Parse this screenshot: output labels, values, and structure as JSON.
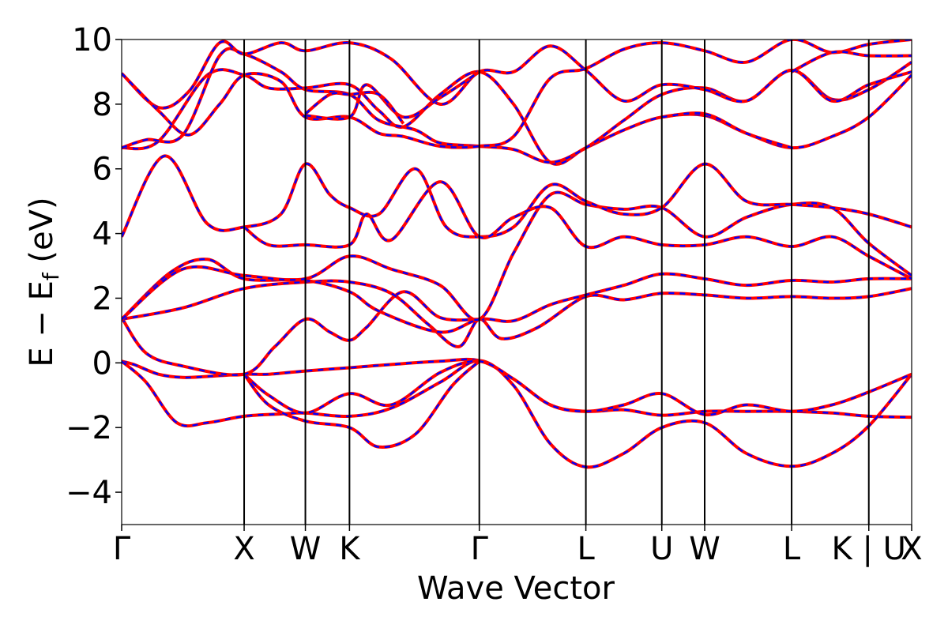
{
  "chart_data": {
    "type": "line",
    "title": "",
    "xlabel": "Wave Vector",
    "ylabel": "E − E",
    "ylabel_sub": "f",
    "ylabel_unit": " (eV)",
    "ylim": [
      -5,
      10
    ],
    "yticks": [
      -4,
      -2,
      0,
      2,
      4,
      6,
      8,
      10
    ],
    "ytick_labels": [
      "−4",
      "−2",
      "0",
      "2",
      "4",
      "6",
      "8",
      "10"
    ],
    "xlim": [
      0,
      6.45
    ],
    "kpoints": [
      {
        "label": "Γ",
        "x": 0
      },
      {
        "label": "X",
        "x": 1.0
      },
      {
        "label": "W",
        "x": 1.5
      },
      {
        "label": "K",
        "x": 1.86
      },
      {
        "label": "Γ",
        "x": 2.92
      },
      {
        "label": "L",
        "x": 3.79
      },
      {
        "label": "U",
        "x": 4.41
      },
      {
        "label": "W",
        "x": 4.76
      },
      {
        "label": "L",
        "x": 5.47
      },
      {
        "label": "K | U",
        "x": 6.1
      },
      {
        "label": "X",
        "x": 6.45
      }
    ],
    "legend": "none",
    "grid": false,
    "series_colors": {
      "line_a": "#ff0000",
      "line_b": "#0000ff"
    },
    "bands": [
      [
        [
          0,
          0.05
        ],
        [
          0.1,
          -0.05
        ],
        [
          0.3,
          -0.35
        ],
        [
          0.5,
          -0.45
        ],
        [
          0.7,
          -0.42
        ],
        [
          1.0,
          -0.35
        ],
        [
          1.2,
          -0.35
        ],
        [
          1.5,
          -0.25
        ],
        [
          1.86,
          -0.15
        ],
        [
          2.2,
          -0.05
        ],
        [
          2.6,
          0.05
        ],
        [
          2.92,
          0.07
        ],
        [
          3.2,
          -0.5
        ],
        [
          3.5,
          -1.3
        ],
        [
          3.79,
          -1.5
        ],
        [
          4.1,
          -1.45
        ],
        [
          4.41,
          -1.62
        ],
        [
          4.76,
          -1.5
        ],
        [
          5.1,
          -1.5
        ],
        [
          5.47,
          -1.5
        ],
        [
          5.8,
          -1.55
        ],
        [
          6.1,
          -1.65
        ],
        [
          6.45,
          -1.68
        ]
      ],
      [
        [
          0,
          0.05
        ],
        [
          0.2,
          -0.6
        ],
        [
          0.45,
          -1.85
        ],
        [
          0.7,
          -1.85
        ],
        [
          1.0,
          -1.65
        ],
        [
          1.3,
          -1.58
        ],
        [
          1.5,
          -1.55
        ],
        [
          1.86,
          -1.65
        ],
        [
          2.2,
          -1.4
        ],
        [
          2.6,
          -0.6
        ],
        [
          2.92,
          0.07
        ],
        [
          3.2,
          -0.7
        ],
        [
          3.5,
          -2.5
        ],
        [
          3.79,
          -3.22
        ],
        [
          4.1,
          -2.8
        ],
        [
          4.41,
          -2.0
        ],
        [
          4.76,
          -1.85
        ],
        [
          5.1,
          -2.8
        ],
        [
          5.47,
          -3.2
        ],
        [
          5.8,
          -2.8
        ],
        [
          6.1,
          -1.95
        ],
        [
          6.45,
          -0.35
        ]
      ],
      [
        [
          1.0,
          -0.35
        ],
        [
          1.2,
          -1.0
        ],
        [
          1.5,
          -1.55
        ],
        [
          1.86,
          -0.95
        ],
        [
          2.2,
          -1.3
        ],
        [
          2.6,
          -0.3
        ],
        [
          2.92,
          0.05
        ],
        [
          3.2,
          -0.5
        ],
        [
          3.5,
          -1.3
        ],
        [
          3.79,
          -1.5
        ],
        [
          4.1,
          -1.3
        ],
        [
          4.41,
          -0.95
        ],
        [
          4.76,
          -1.6
        ],
        [
          5.1,
          -1.3
        ],
        [
          5.47,
          -1.5
        ],
        [
          5.8,
          -1.3
        ],
        [
          6.1,
          -0.9
        ],
        [
          6.45,
          -0.35
        ]
      ],
      [
        [
          1.0,
          -0.35
        ],
        [
          1.2,
          -1.3
        ],
        [
          1.5,
          -1.8
        ],
        [
          1.86,
          -2.0
        ],
        [
          2.1,
          -2.6
        ],
        [
          2.4,
          -2.2
        ],
        [
          2.7,
          -0.7
        ],
        [
          2.92,
          0.05
        ]
      ],
      [
        [
          0,
          1.4
        ],
        [
          0.2,
          0.3
        ],
        [
          0.5,
          -0.1
        ],
        [
          1.0,
          -0.35
        ],
        [
          1.25,
          0.5
        ],
        [
          1.5,
          1.35
        ],
        [
          1.7,
          0.95
        ],
        [
          1.86,
          0.7
        ],
        [
          2.0,
          1.1
        ],
        [
          2.3,
          2.2
        ],
        [
          2.6,
          1.4
        ],
        [
          2.92,
          1.35
        ]
      ],
      [
        [
          0,
          1.35
        ],
        [
          0.5,
          1.7
        ],
        [
          1.0,
          2.3
        ],
        [
          1.5,
          2.5
        ],
        [
          1.86,
          2.5
        ],
        [
          2.2,
          2.15
        ],
        [
          2.5,
          1.2
        ],
        [
          2.75,
          0.5
        ],
        [
          2.92,
          1.35
        ],
        [
          3.1,
          0.75
        ],
        [
          3.4,
          1.1
        ],
        [
          3.79,
          2.05
        ],
        [
          4.1,
          1.95
        ],
        [
          4.41,
          2.15
        ],
        [
          4.76,
          2.1
        ],
        [
          5.1,
          2.0
        ],
        [
          5.47,
          2.05
        ],
        [
          5.8,
          2.0
        ],
        [
          6.1,
          2.05
        ],
        [
          6.45,
          2.3
        ]
      ],
      [
        [
          0,
          1.35
        ],
        [
          0.4,
          2.8
        ],
        [
          0.7,
          3.2
        ],
        [
          1.0,
          2.6
        ],
        [
          1.5,
          2.55
        ],
        [
          1.86,
          2.2
        ],
        [
          2.1,
          1.6
        ],
        [
          2.6,
          0.95
        ],
        [
          2.92,
          1.35
        ],
        [
          3.2,
          1.3
        ],
        [
          3.5,
          1.8
        ],
        [
          3.79,
          2.1
        ],
        [
          4.1,
          2.4
        ],
        [
          4.41,
          2.75
        ],
        [
          4.76,
          2.6
        ],
        [
          5.1,
          2.4
        ],
        [
          5.47,
          2.55
        ],
        [
          5.8,
          2.5
        ],
        [
          6.1,
          2.6
        ],
        [
          6.45,
          2.6
        ]
      ],
      [
        [
          0,
          1.35
        ],
        [
          0.5,
          2.9
        ],
        [
          1.0,
          2.7
        ],
        [
          1.5,
          2.6
        ],
        [
          1.86,
          3.3
        ],
        [
          2.2,
          2.9
        ],
        [
          2.6,
          2.4
        ],
        [
          2.92,
          1.35
        ],
        [
          3.2,
          3.4
        ],
        [
          3.5,
          5.2
        ],
        [
          3.79,
          4.9
        ],
        [
          4.1,
          4.75
        ],
        [
          4.41,
          4.8
        ],
        [
          4.76,
          3.9
        ],
        [
          5.1,
          4.5
        ],
        [
          5.47,
          4.9
        ],
        [
          5.8,
          4.8
        ],
        [
          6.1,
          3.7
        ],
        [
          6.45,
          2.7
        ]
      ],
      [
        [
          0,
          3.9
        ],
        [
          0.35,
          6.4
        ],
        [
          0.7,
          4.3
        ],
        [
          1.0,
          4.2
        ],
        [
          1.3,
          4.6
        ],
        [
          1.5,
          6.15
        ],
        [
          1.7,
          5.2
        ],
        [
          1.86,
          4.8
        ],
        [
          2.1,
          4.6
        ],
        [
          2.4,
          6.0
        ],
        [
          2.65,
          4.2
        ],
        [
          2.92,
          3.9
        ],
        [
          3.2,
          4.2
        ],
        [
          3.5,
          5.5
        ],
        [
          3.79,
          5.0
        ],
        [
          4.1,
          4.6
        ],
        [
          4.41,
          4.8
        ],
        [
          4.76,
          6.15
        ],
        [
          5.1,
          5.0
        ],
        [
          5.47,
          4.9
        ],
        [
          5.8,
          4.8
        ],
        [
          6.1,
          4.6
        ],
        [
          6.45,
          4.2
        ]
      ],
      [
        [
          1.0,
          4.2
        ],
        [
          1.2,
          3.65
        ],
        [
          1.5,
          3.65
        ],
        [
          1.86,
          3.65
        ],
        [
          2.0,
          4.6
        ],
        [
          2.2,
          3.8
        ],
        [
          2.6,
          5.6
        ],
        [
          2.92,
          3.9
        ],
        [
          3.2,
          4.5
        ],
        [
          3.5,
          4.8
        ],
        [
          3.79,
          3.6
        ],
        [
          4.1,
          3.9
        ],
        [
          4.41,
          3.65
        ],
        [
          4.76,
          3.65
        ],
        [
          5.1,
          3.9
        ],
        [
          5.47,
          3.6
        ],
        [
          5.8,
          3.9
        ],
        [
          6.1,
          3.3
        ],
        [
          6.45,
          2.6
        ]
      ],
      [
        [
          0,
          6.65
        ],
        [
          0.3,
          6.85
        ],
        [
          0.7,
          8.9
        ],
        [
          1.0,
          8.9
        ],
        [
          1.2,
          8.5
        ],
        [
          1.5,
          8.5
        ],
        [
          1.86,
          8.6
        ],
        [
          2.1,
          7.8
        ],
        [
          2.3,
          7.3
        ],
        [
          2.6,
          8.3
        ],
        [
          2.92,
          9.0
        ],
        [
          3.2,
          8.0
        ],
        [
          3.5,
          6.2
        ],
        [
          3.79,
          6.65
        ],
        [
          4.1,
          7.2
        ],
        [
          4.41,
          7.6
        ],
        [
          4.76,
          7.65
        ],
        [
          5.1,
          7.1
        ],
        [
          5.47,
          6.65
        ],
        [
          5.8,
          7.0
        ],
        [
          6.1,
          7.6
        ],
        [
          6.45,
          8.9
        ]
      ],
      [
        [
          0,
          6.65
        ],
        [
          0.2,
          6.9
        ],
        [
          0.5,
          7.05
        ],
        [
          0.8,
          9.5
        ],
        [
          1.0,
          9.55
        ],
        [
          1.3,
          9.0
        ],
        [
          1.5,
          8.45
        ],
        [
          1.86,
          8.3
        ],
        [
          2.1,
          7.5
        ],
        [
          2.4,
          7.2
        ],
        [
          2.6,
          6.8
        ],
        [
          2.92,
          6.7
        ],
        [
          3.2,
          6.6
        ],
        [
          3.5,
          6.2
        ],
        [
          3.79,
          6.65
        ],
        [
          4.1,
          7.5
        ],
        [
          4.41,
          8.3
        ],
        [
          4.76,
          8.5
        ],
        [
          5.1,
          8.1
        ],
        [
          5.47,
          9.05
        ],
        [
          5.8,
          8.15
        ],
        [
          6.1,
          8.45
        ],
        [
          6.45,
          9.3
        ]
      ],
      [
        [
          0,
          8.95
        ],
        [
          0.3,
          7.9
        ],
        [
          0.55,
          8.4
        ],
        [
          0.8,
          9.9
        ],
        [
          1.0,
          9.55
        ],
        [
          1.3,
          9.9
        ],
        [
          1.5,
          9.65
        ],
        [
          1.86,
          9.9
        ],
        [
          2.2,
          9.4
        ],
        [
          2.6,
          8.0
        ],
        [
          2.92,
          9.0
        ],
        [
          3.2,
          9.0
        ],
        [
          3.5,
          9.8
        ],
        [
          3.79,
          9.05
        ],
        [
          4.1,
          8.1
        ],
        [
          4.41,
          8.6
        ],
        [
          4.76,
          8.45
        ],
        [
          5.1,
          8.1
        ],
        [
          5.47,
          9.05
        ],
        [
          5.8,
          8.1
        ],
        [
          6.1,
          8.6
        ],
        [
          6.45,
          9.0
        ]
      ],
      [
        [
          0,
          8.95
        ],
        [
          0.3,
          7.8
        ],
        [
          0.55,
          7.05
        ],
        [
          0.8,
          8.0
        ],
        [
          1.0,
          8.9
        ],
        [
          1.3,
          8.7
        ],
        [
          1.5,
          7.6
        ],
        [
          1.86,
          7.6
        ],
        [
          2.1,
          7.1
        ],
        [
          2.3,
          7.0
        ],
        [
          2.6,
          6.7
        ],
        [
          2.92,
          6.7
        ],
        [
          3.2,
          7.0
        ],
        [
          3.5,
          8.8
        ],
        [
          3.79,
          9.1
        ],
        [
          4.1,
          9.7
        ],
        [
          4.41,
          9.9
        ],
        [
          4.76,
          9.65
        ],
        [
          5.1,
          9.3
        ],
        [
          5.47,
          10.0
        ],
        [
          5.8,
          9.6
        ],
        [
          6.1,
          9.85
        ],
        [
          6.45,
          10.0
        ]
      ],
      [
        [
          1.5,
          7.65
        ],
        [
          1.86,
          7.6
        ],
        [
          2.0,
          8.6
        ],
        [
          2.3,
          7.6
        ],
        [
          2.6,
          8.2
        ],
        [
          2.92,
          9.0
        ]
      ],
      [
        [
          1.5,
          7.7
        ],
        [
          1.7,
          8.3
        ],
        [
          1.86,
          8.3
        ],
        [
          2.1,
          8.3
        ],
        [
          2.3,
          7.4
        ]
      ],
      [
        [
          4.41,
          7.6
        ],
        [
          4.76,
          7.7
        ],
        [
          5.1,
          7.1
        ],
        [
          5.47,
          6.65
        ]
      ],
      [
        [
          5.47,
          9.0
        ],
        [
          5.8,
          9.6
        ],
        [
          6.1,
          9.5
        ],
        [
          6.45,
          9.5
        ]
      ]
    ]
  }
}
